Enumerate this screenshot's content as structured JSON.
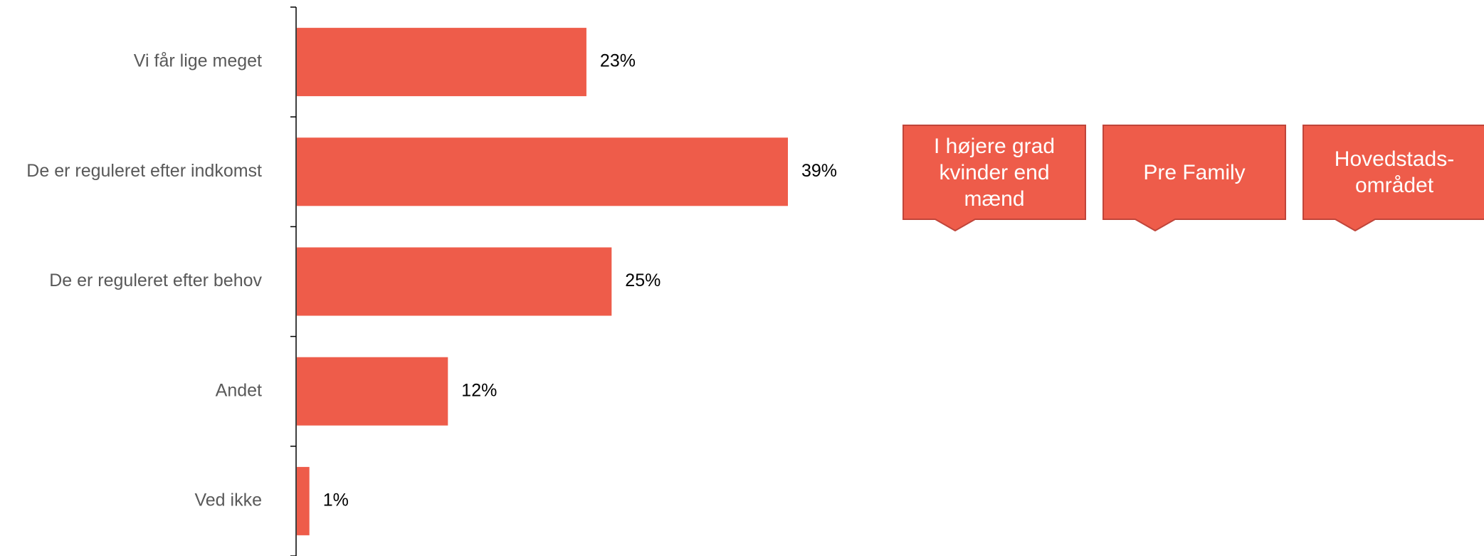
{
  "colors": {
    "bar": "#EE5C4A",
    "axis": "#000000",
    "callout_fill": "#EE5C4A",
    "callout_border": "#C0453A",
    "callout_text": "#FFFFFF",
    "category_text": "#595959"
  },
  "chart_data": {
    "type": "bar",
    "orientation": "horizontal",
    "categories": [
      "Vi får lige meget",
      "De er reguleret efter indkomst",
      "De er reguleret efter behov",
      "Andet",
      "Ved ikke"
    ],
    "values": [
      23,
      39,
      25,
      12,
      1
    ],
    "value_labels": [
      "23%",
      "39%",
      "25%",
      "12%",
      "1%"
    ],
    "title": "",
    "xlabel": "",
    "ylabel": "",
    "xlim": [
      0,
      70
    ],
    "grid": false,
    "legend": false
  },
  "callouts": [
    {
      "text": "I højere grad kvinder end mænd"
    },
    {
      "text": "Pre Family"
    },
    {
      "text": "Hovedstads-området"
    }
  ]
}
